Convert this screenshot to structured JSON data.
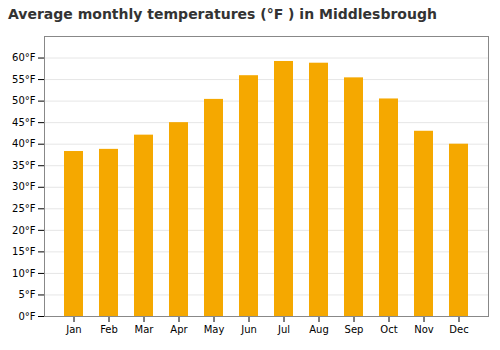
{
  "chart_data": {
    "type": "bar",
    "title": "Average monthly temperatures (°F ) in Middlesbrough",
    "categories": [
      "Jan",
      "Feb",
      "Mar",
      "Apr",
      "May",
      "Jun",
      "Jul",
      "Aug",
      "Sep",
      "Oct",
      "Nov",
      "Dec"
    ],
    "values": [
      38.3,
      38.8,
      42.1,
      45.0,
      50.4,
      55.9,
      59.2,
      58.8,
      55.4,
      50.5,
      43.0,
      40.0
    ],
    "color": "#F5A800",
    "ylim": [
      0,
      65
    ],
    "yticks": [
      {
        "value": 0,
        "label": "0°F"
      },
      {
        "value": 5,
        "label": "5°F"
      },
      {
        "value": 10,
        "label": "10°F"
      },
      {
        "value": 15,
        "label": "15°F"
      },
      {
        "value": 20,
        "label": "20°F"
      },
      {
        "value": 25,
        "label": "25°F"
      },
      {
        "value": 30,
        "label": "30°F"
      },
      {
        "value": 35,
        "label": "35°F"
      },
      {
        "value": 40,
        "label": "40°F"
      },
      {
        "value": 45,
        "label": "45°F"
      },
      {
        "value": 50,
        "label": "50°F"
      },
      {
        "value": 55,
        "label": "55°F"
      },
      {
        "value": 60,
        "label": "60°F"
      }
    ],
    "grid": true
  }
}
